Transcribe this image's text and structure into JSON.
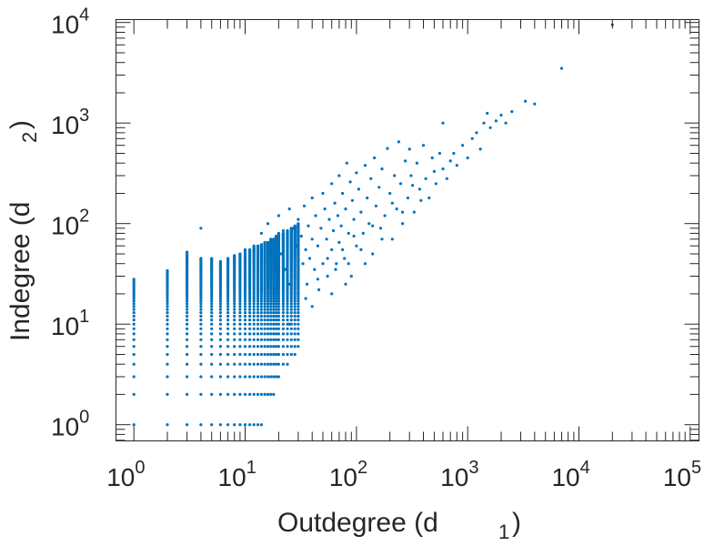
{
  "chart_data": {
    "type": "scatter",
    "xscale": "log",
    "yscale": "log",
    "xlabel": "Outdegree (d",
    "xlabel_sub": "1",
    "xlabel_end": ")",
    "ylabel": "Indegree (d",
    "ylabel_sub": "2",
    "ylabel_end": ")",
    "xlim": [
      0.69,
      120000
    ],
    "ylim": [
      0.69,
      10700
    ],
    "x_ticks": [
      {
        "base": "10",
        "exp": "0",
        "value": 1
      },
      {
        "base": "10",
        "exp": "1",
        "value": 10
      },
      {
        "base": "10",
        "exp": "2",
        "value": 100
      },
      {
        "base": "10",
        "exp": "3",
        "value": 1000
      },
      {
        "base": "10",
        "exp": "4",
        "value": 10000
      },
      {
        "base": "10",
        "exp": "5",
        "value": 100000
      }
    ],
    "y_ticks": [
      {
        "base": "10",
        "exp": "0",
        "value": 1
      },
      {
        "base": "10",
        "exp": "1",
        "value": 10
      },
      {
        "base": "10",
        "exp": "2",
        "value": 100
      },
      {
        "base": "10",
        "exp": "3",
        "value": 1000
      },
      {
        "base": "10",
        "exp": "4",
        "value": 10000
      }
    ],
    "marker_color": "#0072BD",
    "axis_color": "#262626",
    "lattice_columns": [
      [
        1,
        1,
        28
      ],
      [
        2,
        1,
        34
      ],
      [
        3,
        1,
        50
      ],
      [
        4,
        1,
        45
      ],
      [
        5,
        1,
        45
      ],
      [
        6,
        1,
        42
      ],
      [
        7,
        1,
        45
      ],
      [
        8,
        1,
        48
      ],
      [
        9,
        1,
        50
      ],
      [
        10,
        1,
        55
      ],
      [
        11,
        1,
        55
      ],
      [
        12,
        1,
        58
      ],
      [
        13,
        1,
        60
      ],
      [
        14,
        1,
        62
      ],
      [
        15,
        2,
        65
      ],
      [
        16,
        2,
        65
      ],
      [
        17,
        2,
        70
      ],
      [
        18,
        2,
        70
      ],
      [
        19,
        3,
        75
      ],
      [
        20,
        3,
        80
      ],
      [
        22,
        4,
        80
      ],
      [
        24,
        4,
        85
      ],
      [
        26,
        5,
        90
      ],
      [
        28,
        5,
        95
      ],
      [
        30,
        6,
        100
      ]
    ],
    "points": [
      [
        4,
        90
      ],
      [
        3,
        52
      ],
      [
        10,
        40
      ],
      [
        11,
        25
      ],
      [
        12,
        60
      ],
      [
        12,
        18
      ],
      [
        13,
        35
      ],
      [
        14,
        80
      ],
      [
        14,
        22
      ],
      [
        15,
        45
      ],
      [
        16,
        30
      ],
      [
        16,
        100
      ],
      [
        17,
        55
      ],
      [
        18,
        20
      ],
      [
        18,
        70
      ],
      [
        19,
        40
      ],
      [
        20,
        120
      ],
      [
        20,
        28
      ],
      [
        21,
        50
      ],
      [
        22,
        85
      ],
      [
        22,
        16
      ],
      [
        23,
        35
      ],
      [
        24,
        65
      ],
      [
        25,
        140
      ],
      [
        25,
        25
      ],
      [
        26,
        45
      ],
      [
        27,
        90
      ],
      [
        28,
        30
      ],
      [
        29,
        60
      ],
      [
        30,
        110
      ],
      [
        30,
        20
      ],
      [
        32,
        75
      ],
      [
        33,
        40
      ],
      [
        34,
        150
      ],
      [
        35,
        55
      ],
      [
        36,
        25
      ],
      [
        37,
        95
      ],
      [
        38,
        45
      ],
      [
        40,
        70
      ],
      [
        40,
        180
      ],
      [
        42,
        35
      ],
      [
        43,
        120
      ],
      [
        45,
        60
      ],
      [
        46,
        22
      ],
      [
        48,
        90
      ],
      [
        50,
        200
      ],
      [
        50,
        40
      ],
      [
        52,
        140
      ],
      [
        54,
        70
      ],
      [
        55,
        30
      ],
      [
        57,
        110
      ],
      [
        60,
        250
      ],
      [
        60,
        55
      ],
      [
        62,
        85
      ],
      [
        64,
        160
      ],
      [
        66,
        40
      ],
      [
        68,
        120
      ],
      [
        70,
        300
      ],
      [
        70,
        65
      ],
      [
        73,
        95
      ],
      [
        75,
        200
      ],
      [
        78,
        45
      ],
      [
        80,
        140
      ],
      [
        82,
        400
      ],
      [
        85,
        80
      ],
      [
        88,
        260
      ],
      [
        90,
        30
      ],
      [
        92,
        170
      ],
      [
        95,
        110
      ],
      [
        100,
        60
      ],
      [
        100,
        320
      ],
      [
        105,
        220
      ],
      [
        110,
        130
      ],
      [
        115,
        80
      ],
      [
        120,
        380
      ],
      [
        125,
        180
      ],
      [
        130,
        100
      ],
      [
        135,
        280
      ],
      [
        140,
        50
      ],
      [
        145,
        450
      ],
      [
        150,
        150
      ],
      [
        160,
        230
      ],
      [
        165,
        90
      ],
      [
        170,
        350
      ],
      [
        180,
        120
      ],
      [
        190,
        560
      ],
      [
        200,
        200
      ],
      [
        210,
        70
      ],
      [
        220,
        300
      ],
      [
        230,
        140
      ],
      [
        240,
        650
      ],
      [
        250,
        250
      ],
      [
        260,
        100
      ],
      [
        275,
        420
      ],
      [
        290,
        180
      ],
      [
        300,
        550
      ],
      [
        310,
        300
      ],
      [
        330,
        130
      ],
      [
        350,
        400
      ],
      [
        370,
        220
      ],
      [
        400,
        600
      ],
      [
        420,
        280
      ],
      [
        450,
        180
      ],
      [
        480,
        450
      ],
      [
        500,
        330
      ],
      [
        520,
        250
      ],
      [
        560,
        500
      ],
      [
        600,
        1000
      ],
      [
        600,
        350
      ],
      [
        650,
        280
      ],
      [
        700,
        420
      ],
      [
        750,
        500
      ],
      [
        800,
        380
      ],
      [
        900,
        600
      ],
      [
        1000,
        450
      ],
      [
        1100,
        700
      ],
      [
        1200,
        800
      ],
      [
        1300,
        550
      ],
      [
        1400,
        1000
      ],
      [
        1500,
        1250
      ],
      [
        1600,
        900
      ],
      [
        1800,
        1050
      ],
      [
        2000,
        1200
      ],
      [
        2200,
        1000
      ],
      [
        2500,
        1300
      ],
      [
        3300,
        1650
      ],
      [
        4000,
        1550
      ],
      [
        7000,
        3500
      ],
      [
        20000,
        9500
      ],
      [
        40,
        15
      ],
      [
        60,
        20
      ],
      [
        80,
        25
      ],
      [
        120,
        40
      ],
      [
        30,
        12
      ],
      [
        25,
        10
      ],
      [
        35,
        18
      ],
      [
        45,
        28
      ],
      [
        55,
        45
      ],
      [
        65,
        35
      ],
      [
        75,
        55
      ],
      [
        85,
        40
      ],
      [
        95,
        75
      ],
      [
        110,
        55
      ],
      [
        140,
        95
      ],
      [
        170,
        70
      ],
      [
        210,
        160
      ],
      [
        260,
        130
      ],
      [
        320,
        240
      ],
      [
        380,
        170
      ]
    ]
  }
}
